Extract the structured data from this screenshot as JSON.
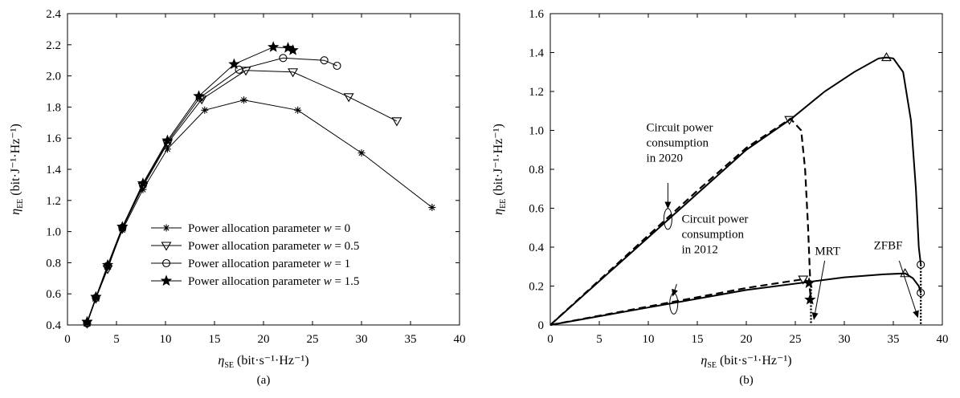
{
  "chart_data": [
    {
      "type": "line",
      "panel_label": "(a)",
      "xlabel": {
        "main": "η",
        "sub": "SE",
        "unit": "(bit·s⁻¹·Hz⁻¹)"
      },
      "ylabel": {
        "main": "η",
        "sub": "EE",
        "unit": "(bit·J⁻¹·Hz⁻¹)"
      },
      "xlim": [
        0,
        40
      ],
      "ylim": [
        0.4,
        2.4
      ],
      "xticks": [
        0,
        5,
        10,
        15,
        20,
        25,
        30,
        35,
        40
      ],
      "yticks": [
        0.4,
        0.6,
        0.8,
        1.0,
        1.2,
        1.4,
        1.6,
        1.8,
        2.0,
        2.2,
        2.4
      ],
      "ytick_labels": [
        "0.4",
        "0.6",
        "0.8",
        "1.0",
        "1.2",
        "1.4",
        "1.6",
        "1.8",
        "2.0",
        "2.2",
        "2.4"
      ],
      "grid": false,
      "legend_position": "bottom-right",
      "series": [
        {
          "name": "Power allocation parameter",
          "wtext": "w = 0",
          "marker": "asterisk",
          "x": [
            2.0,
            2.9,
            4.1,
            5.6,
            7.7,
            10.2,
            14.0,
            18.0,
            23.5,
            30.0,
            37.2
          ],
          "y": [
            0.41,
            0.57,
            0.77,
            1.01,
            1.27,
            1.53,
            1.78,
            1.845,
            1.78,
            1.505,
            1.155
          ]
        },
        {
          "name": "Power allocation parameter",
          "wtext": "w = 0.5",
          "marker": "triangle-down",
          "x": [
            2.0,
            2.9,
            4.1,
            5.6,
            7.7,
            10.2,
            13.7,
            18.2,
            23.0,
            28.7,
            33.6
          ],
          "y": [
            0.41,
            0.57,
            0.76,
            1.02,
            1.29,
            1.565,
            1.85,
            2.035,
            2.025,
            1.865,
            1.71
          ]
        },
        {
          "name": "Power allocation parameter",
          "wtext": "w = 1",
          "marker": "circle",
          "x": [
            2.0,
            2.9,
            4.1,
            5.6,
            7.7,
            10.2,
            13.5,
            17.5,
            22.0,
            26.2,
            27.5
          ],
          "y": [
            0.41,
            0.575,
            0.78,
            1.025,
            1.3,
            1.575,
            1.86,
            2.04,
            2.115,
            2.1,
            2.065
          ]
        },
        {
          "name": "Power allocation parameter",
          "wtext": "w = 1.5",
          "marker": "star",
          "x": [
            2.0,
            2.9,
            4.1,
            5.6,
            7.7,
            10.2,
            13.4,
            17.0,
            21.0,
            22.5,
            23.0
          ],
          "y": [
            0.42,
            0.58,
            0.785,
            1.03,
            1.31,
            1.585,
            1.87,
            2.075,
            2.185,
            2.18,
            2.165
          ]
        }
      ]
    },
    {
      "type": "line",
      "panel_label": "(b)",
      "xlabel": {
        "main": "η",
        "sub": "SE",
        "unit": "(bit·s⁻¹·Hz⁻¹)"
      },
      "ylabel": {
        "main": "η",
        "sub": "EE",
        "unit": "(bit·J⁻¹·Hz⁻¹)"
      },
      "xlim": [
        0,
        40
      ],
      "ylim": [
        0,
        1.6
      ],
      "xticks": [
        0,
        5,
        10,
        15,
        20,
        25,
        30,
        35,
        40
      ],
      "yticks": [
        0,
        0.2,
        0.4,
        0.6,
        0.8,
        1.0,
        1.2,
        1.4,
        1.6
      ],
      "ytick_labels": [
        "0",
        "0.2",
        "0.4",
        "0.6",
        "0.8",
        "1.0",
        "1.2",
        "1.4",
        "1.6"
      ],
      "grid": false,
      "curves": [
        {
          "id": "zfbf-2020",
          "style": "solid",
          "x": [
            0,
            5,
            10,
            15,
            20,
            24.6,
            28,
            31,
            33.5,
            34.3,
            35,
            36,
            36.8,
            37.3,
            37.6,
            37.8
          ],
          "y": [
            0,
            0.225,
            0.45,
            0.675,
            0.9,
            1.06,
            1.2,
            1.3,
            1.37,
            1.375,
            1.37,
            1.3,
            1.05,
            0.7,
            0.4,
            0.31
          ]
        },
        {
          "id": "mrt-2020",
          "style": "dashed",
          "x": [
            0,
            5,
            10,
            15,
            20,
            24.5,
            25.6,
            26.0,
            26.3,
            26.5,
            26.6
          ],
          "y": [
            0,
            0.23,
            0.46,
            0.69,
            0.91,
            1.06,
            1.0,
            0.8,
            0.5,
            0.25,
            0.2
          ]
        },
        {
          "id": "zfbf-2012",
          "style": "solid",
          "x": [
            0,
            10,
            20,
            30,
            34,
            36.2,
            37.0,
            37.6,
            37.8
          ],
          "y": [
            0,
            0.09,
            0.18,
            0.245,
            0.26,
            0.265,
            0.24,
            0.2,
            0.165
          ]
        },
        {
          "id": "mrt-2012",
          "style": "dashed",
          "x": [
            0,
            10,
            20,
            25.8,
            26.4,
            26.6
          ],
          "y": [
            0,
            0.095,
            0.19,
            0.235,
            0.22,
            0.13
          ]
        },
        {
          "id": "zfbf-drop",
          "style": "dotted",
          "x": [
            37.8,
            37.8
          ],
          "y": [
            0.31,
            0
          ]
        },
        {
          "id": "mrt-drop",
          "style": "dotted",
          "x": [
            26.6,
            26.6
          ],
          "y": [
            0.2,
            0
          ]
        }
      ],
      "markers": [
        {
          "shape": "triangle-down",
          "x": 24.4,
          "y": 1.055
        },
        {
          "shape": "triangle-up",
          "x": 34.3,
          "y": 1.375
        },
        {
          "shape": "triangle-down",
          "x": 25.8,
          "y": 0.235
        },
        {
          "shape": "triangle-up",
          "x": 36.2,
          "y": 0.265
        },
        {
          "shape": "star",
          "x": 26.4,
          "y": 0.215
        },
        {
          "shape": "star",
          "x": 26.5,
          "y": 0.13
        },
        {
          "shape": "circle",
          "x": 37.8,
          "y": 0.31
        },
        {
          "shape": "circle",
          "x": 37.8,
          "y": 0.165
        }
      ],
      "annotations": [
        {
          "id": "circuit-2020",
          "lines": [
            "Circuit power",
            "consumption",
            "in 2020"
          ],
          "text_x": 9.8,
          "text_y": 0.995,
          "arrow_from": [
            12.0,
            0.73
          ],
          "arrow_to": [
            12.0,
            0.6
          ],
          "ellipse": [
            12.0,
            0.545
          ]
        },
        {
          "id": "circuit-2012",
          "lines": [
            "Circuit power",
            "consumption",
            "in 2012"
          ],
          "text_x": 13.4,
          "text_y": 0.525,
          "arrow_from": [
            12.9,
            0.21
          ],
          "arrow_to": [
            12.5,
            0.15
          ],
          "ellipse": [
            12.6,
            0.11
          ]
        },
        {
          "id": "mrt",
          "lines": [
            "MRT"
          ],
          "text_x": 27.0,
          "text_y": 0.36,
          "arrow_from": [
            28.0,
            0.33
          ],
          "arrow_to": [
            26.9,
            0.03
          ]
        },
        {
          "id": "zfbf",
          "lines": [
            "ZFBF"
          ],
          "text_x": 33.0,
          "text_y": 0.39,
          "arrow_from": [
            35.6,
            0.33
          ],
          "arrow_to": [
            37.5,
            0.04
          ]
        }
      ]
    }
  ]
}
